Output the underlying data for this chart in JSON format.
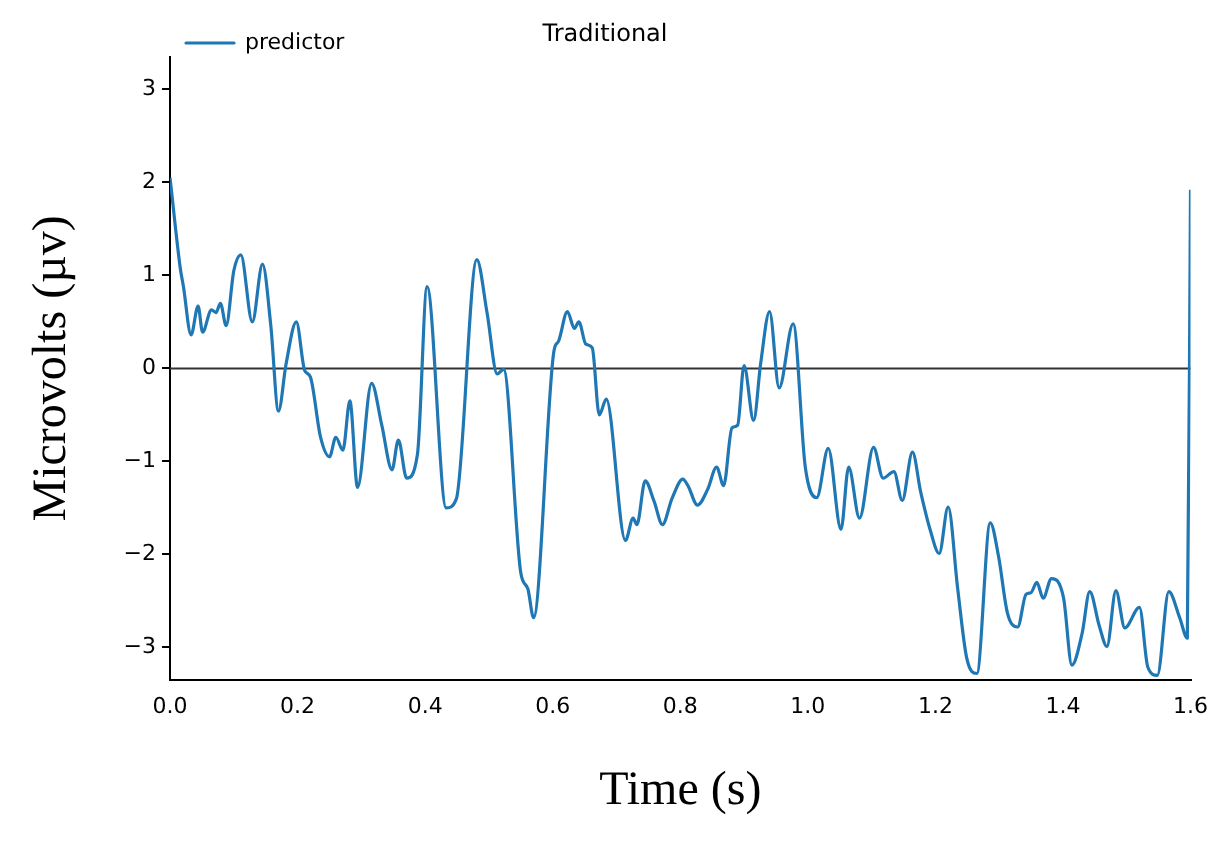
{
  "chart_data": {
    "type": "line",
    "title": "Traditional",
    "xlabel": "Time (s)",
    "ylabel": "Microvolts (µv)",
    "xlim": [
      0,
      1.6
    ],
    "ylim": [
      -3.35,
      3.35
    ],
    "xticks": [
      {
        "value": 0,
        "label": "0.0"
      },
      0.2,
      0.4,
      0.6,
      0.8,
      {
        "value": 1,
        "label": "1.0"
      },
      1.2,
      1.4,
      1.6
    ],
    "yticks": [
      -3,
      -2,
      -1,
      0,
      1,
      2,
      3
    ],
    "grid": false,
    "legend": "top left",
    "marker": "none",
    "line_style": "solid",
    "ref_lines": [
      {
        "axis": "y",
        "value": 0,
        "color": "#333333"
      }
    ],
    "series": [
      {
        "name": "predictor",
        "color": "#1f77b4",
        "x": [
          0,
          0.016,
          0.021,
          0.033,
          0.044,
          0.051,
          0.065,
          0.072,
          0.079,
          0.088,
          0.1,
          0.111,
          0.129,
          0.145,
          0.158,
          0.17,
          0.182,
          0.198,
          0.211,
          0.22,
          0.236,
          0.25,
          0.26,
          0.271,
          0.282,
          0.294,
          0.316,
          0.332,
          0.348,
          0.358,
          0.371,
          0.388,
          0.403,
          0.433,
          0.449,
          0.481,
          0.497,
          0.513,
          0.523,
          0.55,
          0.561,
          0.57,
          0.602,
          0.609,
          0.623,
          0.634,
          0.641,
          0.652,
          0.662,
          0.673,
          0.684,
          0.714,
          0.726,
          0.732,
          0.745,
          0.759,
          0.772,
          0.787,
          0.804,
          0.812,
          0.827,
          0.843,
          0.857,
          0.868,
          0.881,
          0.89,
          0.9,
          0.915,
          0.926,
          0.94,
          0.955,
          0.977,
          0.996,
          1.014,
          1.032,
          1.052,
          1.064,
          1.081,
          1.103,
          1.118,
          1.135,
          1.148,
          1.164,
          1.177,
          1.192,
          1.206,
          1.22,
          1.235,
          1.249,
          1.265,
          1.286,
          1.299,
          1.313,
          1.329,
          1.342,
          1.35,
          1.359,
          1.369,
          1.382,
          1.401,
          1.414,
          1.43,
          1.442,
          1.457,
          1.469,
          1.483,
          1.497,
          1.52,
          1.533,
          1.548,
          1.566,
          1.583,
          1.595,
          1.6
        ],
        "values": [
          2.05,
          1.08,
          0.88,
          0.36,
          0.67,
          0.39,
          0.63,
          0.6,
          0.7,
          0.46,
          1.05,
          1.22,
          0.5,
          1.12,
          0.46,
          -0.46,
          0.05,
          0.5,
          -0.02,
          -0.09,
          -0.74,
          -0.95,
          -0.74,
          -0.88,
          -0.35,
          -1.28,
          -0.16,
          -0.61,
          -1.09,
          -0.77,
          -1.18,
          -0.92,
          0.88,
          -1.5,
          -1.4,
          1.17,
          0.6,
          -0.06,
          -0.01,
          -2.2,
          -2.37,
          -2.68,
          0.19,
          0.29,
          0.61,
          0.43,
          0.5,
          0.26,
          0.22,
          -0.5,
          -0.33,
          -1.85,
          -1.61,
          -1.68,
          -1.21,
          -1.43,
          -1.68,
          -1.4,
          -1.19,
          -1.26,
          -1.47,
          -1.3,
          -1.06,
          -1.26,
          -0.64,
          -0.61,
          0.03,
          -0.56,
          0.05,
          0.61,
          -0.21,
          0.48,
          -1.06,
          -1.39,
          -0.86,
          -1.73,
          -1.06,
          -1.61,
          -0.85,
          -1.18,
          -1.11,
          -1.42,
          -0.9,
          -1.33,
          -1.74,
          -1.99,
          -1.49,
          -2.37,
          -3.11,
          -3.28,
          -1.66,
          -2.02,
          -2.63,
          -2.78,
          -2.43,
          -2.41,
          -2.3,
          -2.47,
          -2.26,
          -2.47,
          -3.19,
          -2.85,
          -2.4,
          -2.77,
          -2.99,
          -2.39,
          -2.79,
          -2.57,
          -3.21,
          -3.3,
          -2.4,
          -2.68,
          -2.9,
          1.92
        ]
      }
    ]
  }
}
